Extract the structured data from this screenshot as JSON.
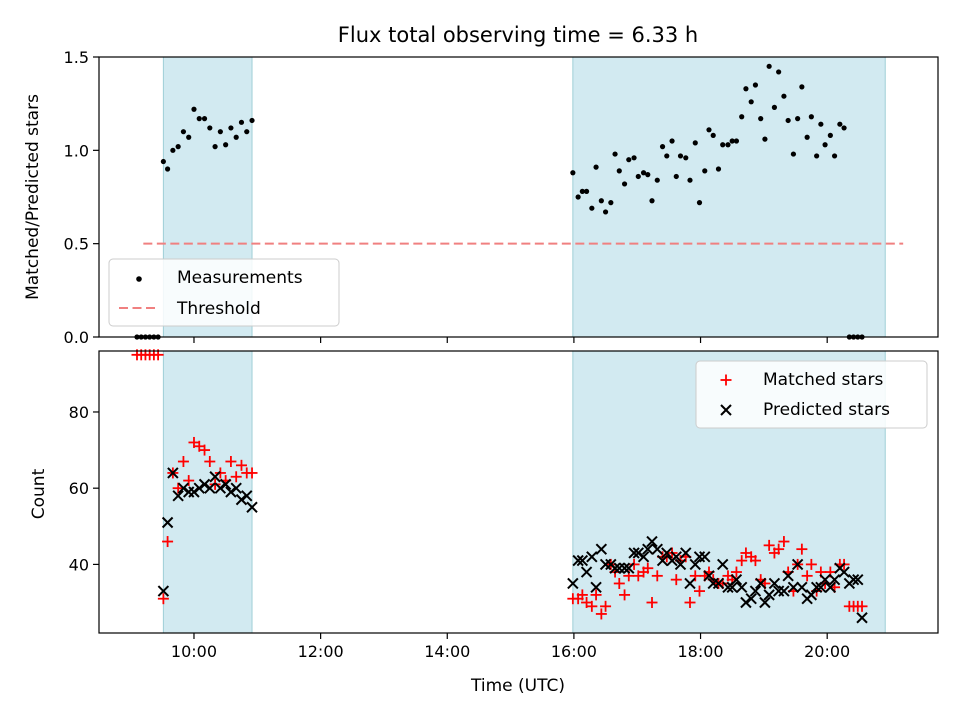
{
  "figure_title": "Flux total observing time = 6.33 h",
  "colors": {
    "band": "#add8e6",
    "threshold": "#f08080",
    "measurement": "#000000",
    "matched": "#ff0000",
    "predicted": "#000000"
  },
  "chart_data": [
    {
      "type": "scatter",
      "panel": "top",
      "ylabel": "Matched/Predicted stars",
      "xlabel": "",
      "xlim": [
        "08:30",
        "21:45"
      ],
      "ylim": [
        0,
        1.5
      ],
      "yticks": [
        "0.0",
        "0.5",
        "1.0",
        "1.5"
      ],
      "xticks": [
        "10:00",
        "12:00",
        "14:00",
        "16:00",
        "18:00",
        "20:00"
      ],
      "xtick_labels_visible": false,
      "shaded_intervals": [
        [
          "09:31",
          "10:55"
        ],
        [
          "15:59",
          "20:55"
        ]
      ],
      "grid": false,
      "legend_position": "lower-left",
      "legend": [
        "Measurements",
        "Threshold"
      ],
      "threshold": {
        "name": "Threshold",
        "y": 0.5,
        "x_range": [
          "09:12",
          "21:12"
        ]
      },
      "series": [
        {
          "name": "Measurements",
          "points": [
            [
              "09:06",
              0.0
            ],
            [
              "09:10",
              0.0
            ],
            [
              "09:14",
              0.0
            ],
            [
              "09:18",
              0.0
            ],
            [
              "09:22",
              0.0
            ],
            [
              "09:26",
              0.0
            ],
            [
              "09:31",
              0.94
            ],
            [
              "09:35",
              0.9
            ],
            [
              "09:40",
              1.0
            ],
            [
              "09:45",
              1.02
            ],
            [
              "09:50",
              1.1
            ],
            [
              "09:55",
              1.07
            ],
            [
              "10:00",
              1.22
            ],
            [
              "10:05",
              1.17
            ],
            [
              "10:10",
              1.17
            ],
            [
              "10:15",
              1.12
            ],
            [
              "10:20",
              1.02
            ],
            [
              "10:25",
              1.1
            ],
            [
              "10:30",
              1.03
            ],
            [
              "10:35",
              1.12
            ],
            [
              "10:40",
              1.07
            ],
            [
              "10:45",
              1.15
            ],
            [
              "10:50",
              1.1
            ],
            [
              "10:55",
              1.16
            ],
            [
              "15:59",
              0.88
            ],
            [
              "16:04",
              0.75
            ],
            [
              "16:08",
              0.78
            ],
            [
              "16:12",
              0.78
            ],
            [
              "16:17",
              0.69
            ],
            [
              "16:21",
              0.91
            ],
            [
              "16:26",
              0.73
            ],
            [
              "16:30",
              0.67
            ],
            [
              "16:35",
              0.72
            ],
            [
              "16:39",
              0.98
            ],
            [
              "16:43",
              0.89
            ],
            [
              "16:48",
              0.82
            ],
            [
              "16:52",
              0.95
            ],
            [
              "16:57",
              0.96
            ],
            [
              "17:01",
              0.86
            ],
            [
              "17:06",
              0.88
            ],
            [
              "17:10",
              0.87
            ],
            [
              "17:14",
              0.73
            ],
            [
              "17:19",
              0.84
            ],
            [
              "17:24",
              1.02
            ],
            [
              "17:28",
              0.97
            ],
            [
              "17:33",
              1.05
            ],
            [
              "17:37",
              0.86
            ],
            [
              "17:41",
              0.97
            ],
            [
              "17:46",
              0.96
            ],
            [
              "17:50",
              0.84
            ],
            [
              "17:55",
              1.04
            ],
            [
              "17:59",
              0.72
            ],
            [
              "18:04",
              0.89
            ],
            [
              "18:08",
              1.11
            ],
            [
              "18:12",
              1.08
            ],
            [
              "18:17",
              0.9
            ],
            [
              "18:21",
              1.03
            ],
            [
              "18:26",
              1.03
            ],
            [
              "18:30",
              1.05
            ],
            [
              "18:34",
              1.05
            ],
            [
              "18:39",
              1.18
            ],
            [
              "18:43",
              1.33
            ],
            [
              "18:48",
              1.26
            ],
            [
              "18:52",
              1.35
            ],
            [
              "18:57",
              1.17
            ],
            [
              "19:01",
              1.06
            ],
            [
              "19:05",
              1.45
            ],
            [
              "19:10",
              1.23
            ],
            [
              "19:14",
              1.42
            ],
            [
              "19:19",
              1.29
            ],
            [
              "19:23",
              1.16
            ],
            [
              "19:28",
              0.98
            ],
            [
              "19:32",
              1.17
            ],
            [
              "19:36",
              1.34
            ],
            [
              "19:41",
              1.07
            ],
            [
              "19:45",
              1.18
            ],
            [
              "19:50",
              0.97
            ],
            [
              "19:54",
              1.14
            ],
            [
              "19:58",
              1.03
            ],
            [
              "20:03",
              1.08
            ],
            [
              "20:07",
              0.97
            ],
            [
              "20:12",
              1.14
            ],
            [
              "20:16",
              1.12
            ],
            [
              "20:21",
              0.0
            ],
            [
              "20:25",
              0.0
            ],
            [
              "20:29",
              0.0
            ],
            [
              "20:33",
              0.0
            ]
          ]
        }
      ]
    },
    {
      "type": "scatter",
      "panel": "bottom",
      "ylabel": "Count",
      "xlabel": "Time (UTC)",
      "xlim": [
        "08:30",
        "21:45"
      ],
      "ylim": [
        22,
        96
      ],
      "yticks": [
        "40",
        "60",
        "80"
      ],
      "xticks": [
        "10:00",
        "12:00",
        "14:00",
        "16:00",
        "18:00",
        "20:00"
      ],
      "shaded_intervals": [
        [
          "09:31",
          "10:55"
        ],
        [
          "15:59",
          "20:55"
        ]
      ],
      "grid": false,
      "legend_position": "upper-right",
      "legend": [
        "Matched stars",
        "Predicted stars"
      ],
      "series": [
        {
          "name": "Matched stars",
          "marker": "plus",
          "points": [
            [
              "09:06",
              95
            ],
            [
              "09:10",
              95
            ],
            [
              "09:14",
              95
            ],
            [
              "09:18",
              95
            ],
            [
              "09:22",
              95
            ],
            [
              "09:26",
              95
            ],
            [
              "09:31",
              31
            ],
            [
              "09:35",
              46
            ],
            [
              "09:40",
              64
            ],
            [
              "09:45",
              60
            ],
            [
              "09:50",
              67
            ],
            [
              "09:55",
              62
            ],
            [
              "10:00",
              72
            ],
            [
              "10:05",
              71
            ],
            [
              "10:10",
              70
            ],
            [
              "10:15",
              67
            ],
            [
              "10:20",
              61
            ],
            [
              "10:25",
              64
            ],
            [
              "10:30",
              62
            ],
            [
              "10:35",
              67
            ],
            [
              "10:40",
              63
            ],
            [
              "10:45",
              66
            ],
            [
              "10:50",
              64
            ],
            [
              "10:55",
              64
            ],
            [
              "15:59",
              31
            ],
            [
              "16:04",
              31
            ],
            [
              "16:08",
              32
            ],
            [
              "16:12",
              30
            ],
            [
              "16:17",
              29
            ],
            [
              "16:21",
              32
            ],
            [
              "16:26",
              27
            ],
            [
              "16:30",
              29
            ],
            [
              "16:35",
              40
            ],
            [
              "16:39",
              38
            ],
            [
              "16:43",
              35
            ],
            [
              "16:48",
              32
            ],
            [
              "16:52",
              37
            ],
            [
              "16:57",
              40
            ],
            [
              "17:01",
              37
            ],
            [
              "17:06",
              38
            ],
            [
              "17:10",
              39
            ],
            [
              "17:14",
              30
            ],
            [
              "17:19",
              37
            ],
            [
              "17:24",
              42
            ],
            [
              "17:28",
              42
            ],
            [
              "17:33",
              43
            ],
            [
              "17:37",
              36
            ],
            [
              "17:41",
              41
            ],
            [
              "17:46",
              42
            ],
            [
              "17:50",
              30
            ],
            [
              "17:55",
              37
            ],
            [
              "17:59",
              33
            ],
            [
              "18:04",
              37
            ],
            [
              "18:08",
              38
            ],
            [
              "18:12",
              36
            ],
            [
              "18:17",
              35
            ],
            [
              "18:21",
              35
            ],
            [
              "18:26",
              37
            ],
            [
              "18:30",
              36
            ],
            [
              "18:34",
              38
            ],
            [
              "18:39",
              41
            ],
            [
              "18:43",
              43
            ],
            [
              "18:48",
              42
            ],
            [
              "18:52",
              41
            ],
            [
              "18:57",
              36
            ],
            [
              "19:01",
              35
            ],
            [
              "19:05",
              45
            ],
            [
              "19:10",
              43
            ],
            [
              "19:14",
              44
            ],
            [
              "19:19",
              46
            ],
            [
              "19:23",
              38
            ],
            [
              "19:28",
              33
            ],
            [
              "19:32",
              40
            ],
            [
              "19:36",
              44
            ],
            [
              "19:41",
              37
            ],
            [
              "19:45",
              40
            ],
            [
              "19:50",
              33
            ],
            [
              "19:54",
              38
            ],
            [
              "19:58",
              35
            ],
            [
              "20:03",
              38
            ],
            [
              "20:07",
              34
            ],
            [
              "20:12",
              40
            ],
            [
              "20:16",
              40
            ],
            [
              "20:21",
              29
            ],
            [
              "20:25",
              29
            ],
            [
              "20:29",
              29
            ],
            [
              "20:33",
              29
            ]
          ]
        },
        {
          "name": "Predicted stars",
          "marker": "x",
          "points": [
            [
              "09:31",
              33
            ],
            [
              "09:35",
              51
            ],
            [
              "09:40",
              64
            ],
            [
              "09:45",
              58
            ],
            [
              "09:50",
              60
            ],
            [
              "09:55",
              59
            ],
            [
              "10:00",
              59
            ],
            [
              "10:05",
              60
            ],
            [
              "10:10",
              61
            ],
            [
              "10:15",
              60
            ],
            [
              "10:20",
              63
            ],
            [
              "10:25",
              60
            ],
            [
              "10:30",
              61
            ],
            [
              "10:35",
              59
            ],
            [
              "10:40",
              60
            ],
            [
              "10:45",
              57
            ],
            [
              "10:50",
              58
            ],
            [
              "10:55",
              55
            ],
            [
              "15:59",
              35
            ],
            [
              "16:04",
              41
            ],
            [
              "16:08",
              41
            ],
            [
              "16:12",
              38
            ],
            [
              "16:17",
              42
            ],
            [
              "16:21",
              34
            ],
            [
              "16:26",
              44
            ],
            [
              "16:30",
              40
            ],
            [
              "16:35",
              40
            ],
            [
              "16:39",
              39
            ],
            [
              "16:43",
              39
            ],
            [
              "16:48",
              39
            ],
            [
              "16:52",
              39
            ],
            [
              "16:57",
              43
            ],
            [
              "17:01",
              43
            ],
            [
              "17:06",
              42
            ],
            [
              "17:10",
              44
            ],
            [
              "17:14",
              46
            ],
            [
              "17:19",
              44
            ],
            [
              "17:24",
              41
            ],
            [
              "17:28",
              43
            ],
            [
              "17:33",
              41
            ],
            [
              "17:37",
              42
            ],
            [
              "17:41",
              40
            ],
            [
              "17:46",
              43
            ],
            [
              "17:50",
              35
            ],
            [
              "17:55",
              40
            ],
            [
              "17:59",
              42
            ],
            [
              "18:04",
              42
            ],
            [
              "18:08",
              37
            ],
            [
              "18:12",
              35
            ],
            [
              "18:17",
              35
            ],
            [
              "18:21",
              40
            ],
            [
              "18:26",
              34
            ],
            [
              "18:30",
              34
            ],
            [
              "18:34",
              36
            ],
            [
              "18:39",
              34
            ],
            [
              "18:43",
              30
            ],
            [
              "18:48",
              31
            ],
            [
              "18:52",
              33
            ],
            [
              "18:57",
              35
            ],
            [
              "19:01",
              30
            ],
            [
              "19:05",
              32
            ],
            [
              "19:10",
              35
            ],
            [
              "19:14",
              33
            ],
            [
              "19:19",
              33
            ],
            [
              "19:23",
              37
            ],
            [
              "19:28",
              34
            ],
            [
              "19:32",
              40
            ],
            [
              "19:36",
              34
            ],
            [
              "19:41",
              31
            ],
            [
              "19:45",
              32
            ],
            [
              "19:50",
              34
            ],
            [
              "19:54",
              34
            ],
            [
              "19:58",
              36
            ],
            [
              "20:03",
              34
            ],
            [
              "20:07",
              36
            ],
            [
              "20:12",
              39
            ],
            [
              "20:16",
              38
            ],
            [
              "20:21",
              35
            ],
            [
              "20:25",
              36
            ],
            [
              "20:29",
              36
            ],
            [
              "20:33",
              26
            ]
          ]
        }
      ]
    }
  ]
}
